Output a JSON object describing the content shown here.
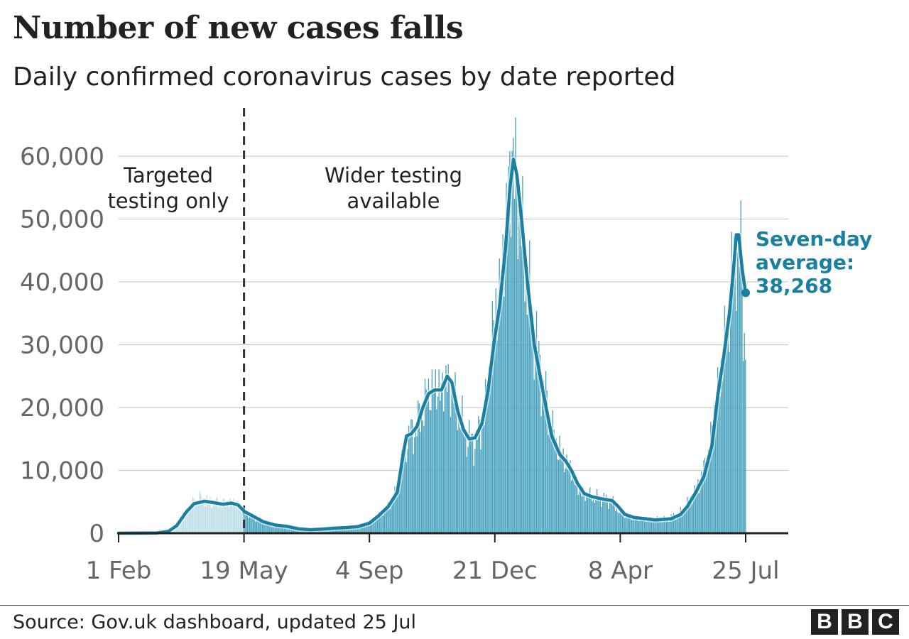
{
  "header": {
    "title": "Number of new cases falls",
    "subtitle": "Daily confirmed coronavirus cases by date reported"
  },
  "footer": {
    "source": "Source: Gov.uk dashboard, updated 25 Jul",
    "logo_letters": [
      "B",
      "B",
      "C"
    ]
  },
  "colors": {
    "bar": "#4aa3bf",
    "bar_early": "#bcdde8",
    "line": "#1b7fa0",
    "grid": "#cccccc",
    "axis": "#222222",
    "tick_text": "#666666"
  },
  "chart_data": {
    "type": "bar",
    "x_axis": {
      "type": "date",
      "start": "2020-02-01",
      "end": "2021-07-25",
      "ticks": [
        {
          "date": "2020-02-01",
          "label": "1 Feb"
        },
        {
          "date": "2020-05-19",
          "label": "19 May"
        },
        {
          "date": "2020-09-04",
          "label": "4 Sep"
        },
        {
          "date": "2020-12-21",
          "label": "21 Dec"
        },
        {
          "date": "2021-04-08",
          "label": "8 Apr"
        },
        {
          "date": "2021-07-25",
          "label": "25 Jul"
        }
      ]
    },
    "y_axis": {
      "ylim": [
        0,
        60000
      ],
      "ticks": [
        {
          "value": 0,
          "label": "0"
        },
        {
          "value": 10000,
          "label": "10,000"
        },
        {
          "value": 20000,
          "label": "20,000"
        },
        {
          "value": 30000,
          "label": "30,000"
        },
        {
          "value": 40000,
          "label": "40,000"
        },
        {
          "value": 50000,
          "label": "50,000"
        },
        {
          "value": 60000,
          "label": "60,000"
        }
      ]
    },
    "grid": true,
    "divider": {
      "date": "2020-05-19"
    },
    "region_labels": [
      {
        "lines": [
          "Targeted",
          "testing only"
        ]
      },
      {
        "lines": [
          "Wider testing",
          "available"
        ]
      }
    ],
    "series": [
      {
        "kind": "daily bars",
        "points": [
          [
            "2020-02-01",
            0
          ],
          [
            "2020-03-01",
            30
          ],
          [
            "2020-03-15",
            350
          ],
          [
            "2020-03-25",
            2000
          ],
          [
            "2020-04-02",
            4300
          ],
          [
            "2020-04-10",
            5500
          ],
          [
            "2020-04-20",
            5000
          ],
          [
            "2020-04-30",
            4800
          ],
          [
            "2020-05-10",
            4900
          ],
          [
            "2020-05-19",
            3600
          ],
          [
            "2020-05-25",
            2800
          ],
          [
            "2020-06-05",
            1700
          ],
          [
            "2020-06-15",
            1300
          ],
          [
            "2020-06-25",
            1100
          ],
          [
            "2020-07-05",
            700
          ],
          [
            "2020-07-20",
            600
          ],
          [
            "2020-08-01",
            750
          ],
          [
            "2020-08-15",
            900
          ],
          [
            "2020-08-25",
            1100
          ],
          [
            "2020-09-04",
            1500
          ],
          [
            "2020-09-12",
            3000
          ],
          [
            "2020-09-20",
            4200
          ],
          [
            "2020-09-28",
            6500
          ],
          [
            "2020-10-03",
            12000
          ],
          [
            "2020-10-06",
            15000
          ],
          [
            "2020-10-12",
            16000
          ],
          [
            "2020-10-18",
            18500
          ],
          [
            "2020-10-24",
            22000
          ],
          [
            "2020-10-30",
            23000
          ],
          [
            "2020-11-05",
            23000
          ],
          [
            "2020-11-10",
            24500
          ],
          [
            "2020-11-15",
            22500
          ],
          [
            "2020-11-22",
            18000
          ],
          [
            "2020-11-28",
            15000
          ],
          [
            "2020-12-03",
            14500
          ],
          [
            "2020-12-08",
            16000
          ],
          [
            "2020-12-14",
            21000
          ],
          [
            "2020-12-18",
            30000
          ],
          [
            "2020-12-23",
            36000
          ],
          [
            "2020-12-28",
            42000
          ],
          [
            "2021-01-01",
            53000
          ],
          [
            "2021-01-05",
            59000
          ],
          [
            "2021-01-08",
            58000
          ],
          [
            "2021-01-12",
            50000
          ],
          [
            "2021-01-18",
            40000
          ],
          [
            "2021-01-24",
            32000
          ],
          [
            "2021-02-01",
            23000
          ],
          [
            "2021-02-10",
            15000
          ],
          [
            "2021-02-18",
            12000
          ],
          [
            "2021-02-25",
            10000
          ],
          [
            "2021-03-05",
            6500
          ],
          [
            "2021-03-15",
            5800
          ],
          [
            "2021-03-25",
            5500
          ],
          [
            "2021-04-01",
            5000
          ],
          [
            "2021-04-08",
            3300
          ],
          [
            "2021-04-15",
            2700
          ],
          [
            "2021-04-25",
            2300
          ],
          [
            "2021-05-05",
            2200
          ],
          [
            "2021-05-15",
            2200
          ],
          [
            "2021-05-25",
            2800
          ],
          [
            "2021-06-01",
            3500
          ],
          [
            "2021-06-08",
            5500
          ],
          [
            "2021-06-15",
            8000
          ],
          [
            "2021-06-22",
            12000
          ],
          [
            "2021-06-29",
            20000
          ],
          [
            "2021-07-05",
            27000
          ],
          [
            "2021-07-10",
            34000
          ],
          [
            "2021-07-14",
            42000
          ],
          [
            "2021-07-17",
            48000
          ],
          [
            "2021-07-19",
            42000
          ],
          [
            "2021-07-21",
            44000
          ],
          [
            "2021-07-23",
            36000
          ],
          [
            "2021-07-25",
            29000
          ]
        ]
      },
      {
        "kind": "seven-day average line",
        "points": [
          [
            "2020-02-01",
            0
          ],
          [
            "2020-03-05",
            50
          ],
          [
            "2020-03-15",
            300
          ],
          [
            "2020-03-22",
            1200
          ],
          [
            "2020-03-30",
            3300
          ],
          [
            "2020-04-06",
            4700
          ],
          [
            "2020-04-15",
            5100
          ],
          [
            "2020-04-25",
            4800
          ],
          [
            "2020-05-01",
            4600
          ],
          [
            "2020-05-08",
            4800
          ],
          [
            "2020-05-14",
            4500
          ],
          [
            "2020-05-19",
            3500
          ],
          [
            "2020-05-25",
            2900
          ],
          [
            "2020-06-05",
            1800
          ],
          [
            "2020-06-15",
            1300
          ],
          [
            "2020-06-25",
            1100
          ],
          [
            "2020-07-05",
            700
          ],
          [
            "2020-07-15",
            550
          ],
          [
            "2020-07-25",
            650
          ],
          [
            "2020-08-05",
            800
          ],
          [
            "2020-08-15",
            900
          ],
          [
            "2020-08-25",
            1050
          ],
          [
            "2020-09-04",
            1600
          ],
          [
            "2020-09-12",
            2800
          ],
          [
            "2020-09-20",
            4200
          ],
          [
            "2020-09-28",
            6500
          ],
          [
            "2020-10-03",
            12500
          ],
          [
            "2020-10-06",
            15500
          ],
          [
            "2020-10-10",
            15800
          ],
          [
            "2020-10-15",
            17000
          ],
          [
            "2020-10-20",
            20000
          ],
          [
            "2020-10-25",
            22200
          ],
          [
            "2020-10-30",
            22800
          ],
          [
            "2020-11-05",
            22800
          ],
          [
            "2020-11-10",
            25000
          ],
          [
            "2020-11-14",
            24000
          ],
          [
            "2020-11-19",
            19500
          ],
          [
            "2020-11-24",
            16500
          ],
          [
            "2020-11-29",
            15000
          ],
          [
            "2020-12-04",
            15200
          ],
          [
            "2020-12-10",
            17500
          ],
          [
            "2020-12-15",
            22500
          ],
          [
            "2020-12-20",
            30000
          ],
          [
            "2020-12-25",
            36000
          ],
          [
            "2020-12-30",
            45000
          ],
          [
            "2021-01-03",
            55000
          ],
          [
            "2021-01-06",
            59500
          ],
          [
            "2021-01-09",
            57000
          ],
          [
            "2021-01-13",
            50000
          ],
          [
            "2021-01-18",
            40000
          ],
          [
            "2021-01-24",
            30000
          ],
          [
            "2021-02-01",
            22000
          ],
          [
            "2021-02-08",
            15500
          ],
          [
            "2021-02-15",
            12500
          ],
          [
            "2021-02-20",
            11500
          ],
          [
            "2021-02-25",
            10000
          ],
          [
            "2021-03-02",
            8000
          ],
          [
            "2021-03-08",
            6300
          ],
          [
            "2021-03-15",
            5800
          ],
          [
            "2021-03-25",
            5400
          ],
          [
            "2021-04-01",
            5200
          ],
          [
            "2021-04-06",
            4300
          ],
          [
            "2021-04-12",
            3000
          ],
          [
            "2021-04-20",
            2500
          ],
          [
            "2021-04-30",
            2300
          ],
          [
            "2021-05-08",
            2100
          ],
          [
            "2021-05-15",
            2200
          ],
          [
            "2021-05-22",
            2300
          ],
          [
            "2021-05-30",
            3000
          ],
          [
            "2021-06-05",
            4300
          ],
          [
            "2021-06-12",
            6500
          ],
          [
            "2021-06-19",
            9000
          ],
          [
            "2021-06-26",
            14000
          ],
          [
            "2021-07-01",
            22000
          ],
          [
            "2021-07-06",
            28000
          ],
          [
            "2021-07-11",
            35000
          ],
          [
            "2021-07-15",
            43000
          ],
          [
            "2021-07-17",
            47500
          ],
          [
            "2021-07-19",
            47500
          ],
          [
            "2021-07-22",
            42000
          ],
          [
            "2021-07-25",
            38268
          ]
        ]
      }
    ],
    "annotation": {
      "lines": [
        "Seven-day",
        "average:",
        "38,268"
      ],
      "date": "2021-07-25",
      "value": 38268
    }
  }
}
